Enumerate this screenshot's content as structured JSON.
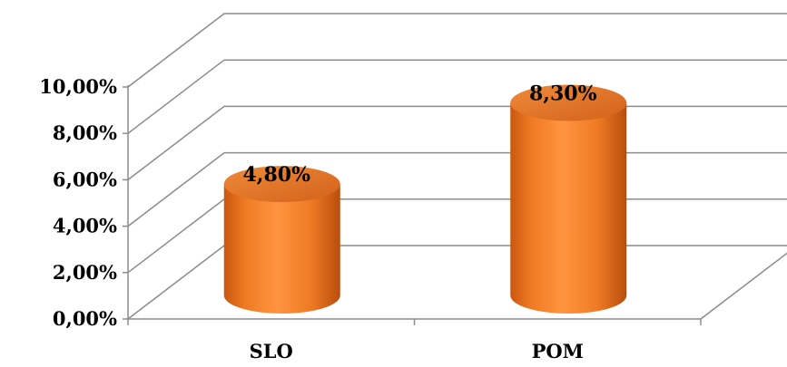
{
  "chart_data": {
    "type": "bar",
    "style": "3d-cylinder",
    "categories": [
      "SLO",
      "POM"
    ],
    "values": [
      4.8,
      8.3
    ],
    "data_labels": [
      "4,80%",
      "8,30%"
    ],
    "ylim": [
      0,
      10
    ],
    "yticks": [
      0,
      2,
      4,
      6,
      8,
      10
    ],
    "ytick_labels": [
      "0,00%",
      "2,00%",
      "4,00%",
      "6,00%",
      "8,00%",
      "10,00%"
    ],
    "title": "",
    "xlabel": "",
    "ylabel": "",
    "grid": true,
    "legend": "none",
    "colors": {
      "bar": "#f5842a",
      "bar_dark": "#b84d0c",
      "bar_top": "#e0701c",
      "grid": "#8c8c8c"
    }
  }
}
